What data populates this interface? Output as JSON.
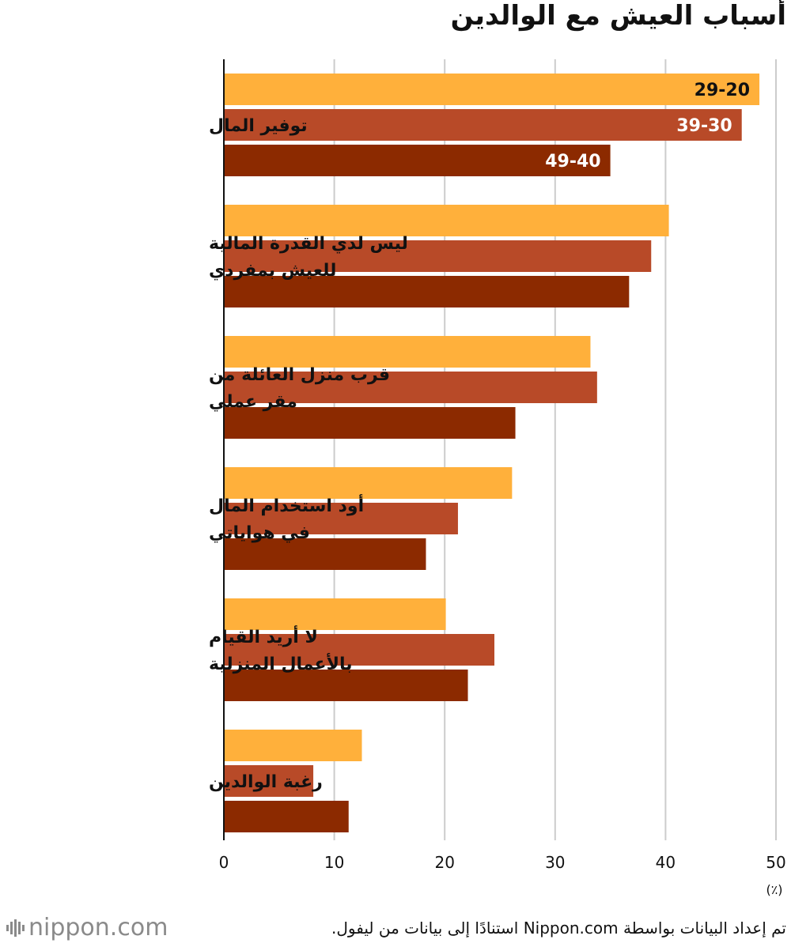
{
  "title": "أسباب العيش مع الوالدين",
  "source_note": "تم إعداد البيانات بواسطة Nippon.com استنادًا إلى بيانات من ليفول.",
  "logo_text": "nippon.com",
  "colors": {
    "s20": "#FFB03B",
    "s30": "#B84A28",
    "s40": "#8C2A00",
    "grid": "#cccccc",
    "axis": "#111111"
  },
  "chart_data": {
    "type": "bar",
    "orientation": "horizontal",
    "categories": [
      [
        "توفير المال"
      ],
      [
        "ليس لدي القدرة المالية",
        "للعيش بمفردي"
      ],
      [
        "قرب منزل العائلة من",
        "مقر عملي"
      ],
      [
        "أود استخدام المال",
        "في هواياتي"
      ],
      [
        "لا أريد القيام",
        "بالأعمال المنزلية"
      ],
      [
        "رغبة الوالدين"
      ]
    ],
    "series": [
      {
        "name": "29-20",
        "values": [
          48.5,
          40.3,
          33.2,
          26.1,
          20.1,
          12.5
        ]
      },
      {
        "name": "39-30",
        "values": [
          46.9,
          38.7,
          33.8,
          21.2,
          24.5,
          8.1
        ]
      },
      {
        "name": "49-40",
        "values": [
          35.0,
          36.7,
          26.4,
          18.3,
          22.1,
          11.3
        ]
      }
    ],
    "xlim": [
      0,
      50
    ],
    "xticks": [
      0,
      10,
      20,
      30,
      40,
      50
    ],
    "unit_label": "(٪)",
    "grid": true
  }
}
